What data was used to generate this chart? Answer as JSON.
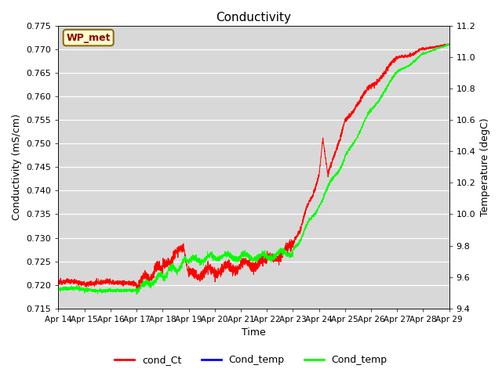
{
  "title": "Conductivity",
  "ylabel_left": "Conductivity (mS/cm)",
  "ylabel_right": "Temperature (degC)",
  "xlabel": "Time",
  "ylim_left": [
    0.715,
    0.775
  ],
  "ylim_right": [
    9.4,
    11.2
  ],
  "yticks_left": [
    0.715,
    0.72,
    0.725,
    0.73,
    0.735,
    0.74,
    0.745,
    0.75,
    0.755,
    0.76,
    0.765,
    0.77,
    0.775
  ],
  "yticks_right": [
    9.4,
    9.6,
    9.8,
    10.0,
    10.2,
    10.4,
    10.6,
    10.8,
    11.0,
    11.2
  ],
  "xtick_labels": [
    "Apr 14",
    "Apr 15",
    "Apr 16",
    "Apr 17",
    "Apr 18",
    "Apr 19",
    "Apr 20",
    "Apr 21",
    "Apr 22",
    "Apr 23",
    "Apr 24",
    "Apr 25",
    "Apr 26",
    "Apr 27",
    "Apr 28",
    "Apr 29"
  ],
  "bg_color": "#d8d8d8",
  "wp_met_label": "WP_met",
  "wp_met_bg": "#ffffcc",
  "wp_met_border": "#8b6914",
  "n_points": 4000
}
